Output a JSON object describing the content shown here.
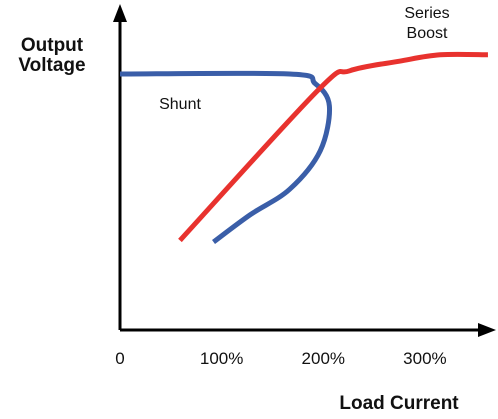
{
  "chart_data": {
    "type": "line",
    "x_label": "Load Current",
    "y_label": "Output Voltage",
    "xlim": [
      0,
      365
    ],
    "ylim": [
      0,
      100
    ],
    "xticks": [
      0,
      {
        "value": 100,
        "label": "100%"
      },
      {
        "value": 200,
        "label": "200%"
      },
      {
        "value": 300,
        "label": "300%"
      }
    ],
    "series": [
      {
        "name": "Shunt",
        "color": "#3a5ea8",
        "x": [
          0,
          167,
          192,
          206,
          197,
          167,
          128,
          92
        ],
        "values": [
          80,
          80,
          77,
          70,
          56,
          44,
          36,
          27.5
        ]
      },
      {
        "name": "Series Boost",
        "color": "#e8322e",
        "x": [
          59,
          195,
          226,
          275,
          315,
          362
        ],
        "values": [
          28,
          75,
          81,
          84,
          86,
          86
        ]
      }
    ]
  }
}
